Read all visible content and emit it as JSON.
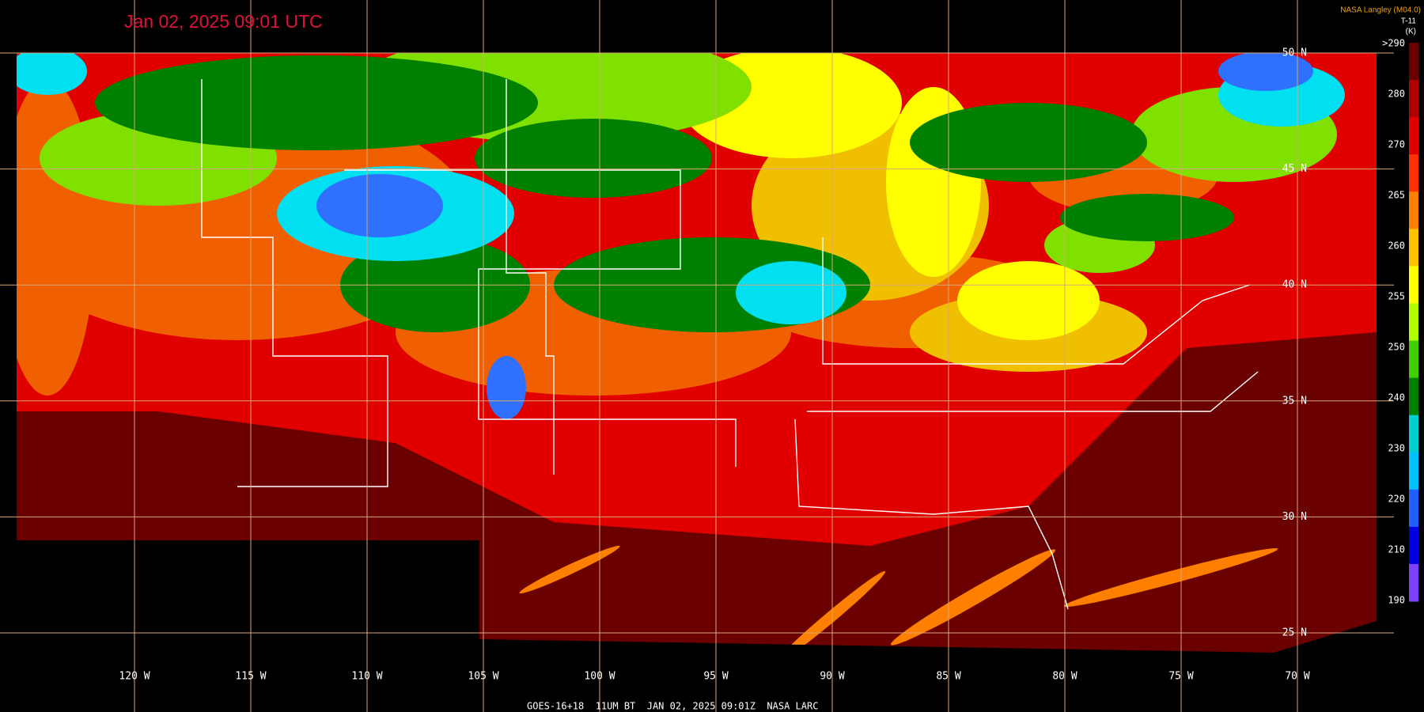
{
  "header": {
    "title": "Jan 02, 2025 09:01 UTC",
    "credit": "NASA Langley (M04.0)",
    "product": "T-11",
    "unit": "(K)"
  },
  "colorbar": {
    "labels": [
      ">290",
      280,
      270,
      265,
      260,
      255,
      250,
      240,
      230,
      220,
      210,
      190
    ]
  },
  "latitude_labels": [
    "50 N",
    "45 N",
    "40 N",
    "35 N",
    "30 N",
    "25 N"
  ],
  "longitude_labels": [
    "120 W",
    "115 W",
    "110 W",
    "105 W",
    "100 W",
    "95 W",
    "90 W",
    "85 W",
    "80 W",
    "75 W",
    "70 W"
  ],
  "footer": {
    "caption": "GOES-16+18  11UM BT  JAN 02, 2025 09:01Z  NASA LARC"
  }
}
